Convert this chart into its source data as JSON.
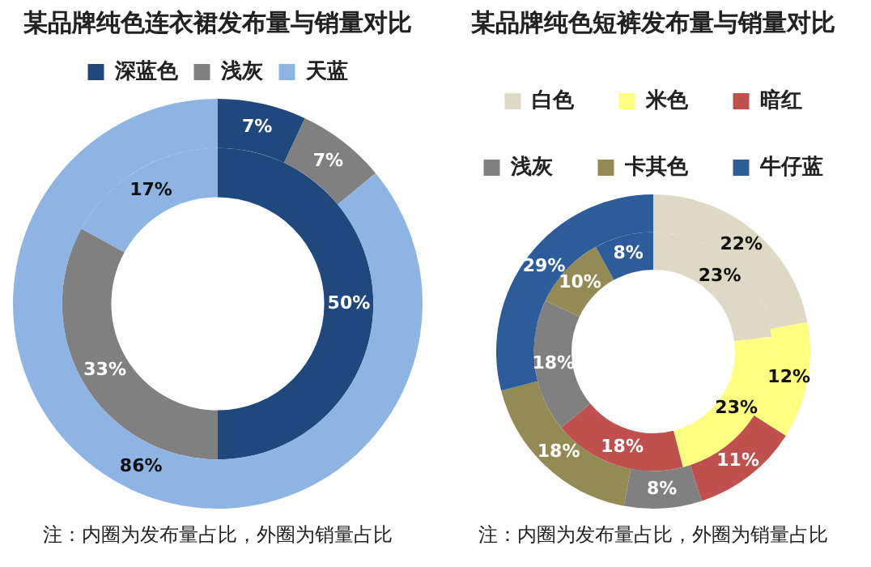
{
  "chart_data": [
    {
      "type": "donut",
      "title": "某品牌纯色连衣裙发布量与销量对比",
      "categories": [
        "深蓝色",
        "浅灰",
        "天蓝"
      ],
      "colors": [
        "#1f497d",
        "#808080",
        "#8db4e2"
      ],
      "legend": "top",
      "annotations": [
        "注：内圈为发布量占比，外圈为销量占比"
      ],
      "series": [
        {
          "values": [
            7,
            7,
            86
          ],
          "value_labels": [
            "7%",
            "7%",
            "86%"
          ]
        },
        {
          "values": [
            50,
            33,
            17
          ],
          "value_labels": [
            "50%",
            "33%",
            "17%"
          ]
        }
      ]
    },
    {
      "type": "donut",
      "title": "某品牌纯色短裤发布量与销量对比",
      "categories": [
        "白色",
        "米色",
        "暗红",
        "浅灰",
        "卡其色",
        "牛仔蓝"
      ],
      "colors": [
        "#ddd9c4",
        "#ffff80",
        "#c0504d",
        "#808080",
        "#948a54",
        "#2c5c9a"
      ],
      "legend": "top",
      "annotations": [
        "注：内圈为发布量占比，外圈为销量占比"
      ],
      "series": [
        {
          "values": [
            22,
            12,
            11,
            8,
            18,
            29
          ],
          "value_labels": [
            "22%",
            "12%",
            "11%",
            "8%",
            "18%",
            "29%"
          ]
        },
        {
          "values": [
            23,
            23,
            18,
            18,
            10,
            8
          ],
          "value_labels": [
            "23%",
            "23%",
            "18%",
            "18%",
            "10%",
            "8%"
          ]
        }
      ]
    }
  ]
}
